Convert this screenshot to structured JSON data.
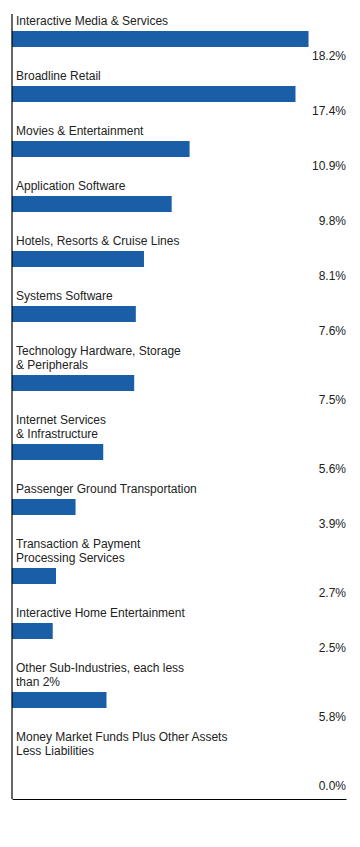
{
  "chart_data": {
    "type": "bar",
    "orientation": "horizontal",
    "categories": [
      "Interactive Media & Services",
      "Broadline Retail",
      "Movies & Entertainment",
      "Application Software",
      "Hotels, Resorts & Cruise Lines",
      "Systems Software",
      "Technology Hardware, Storage\n& Peripherals",
      "Internet Services\n& Infrastructure",
      "Passenger Ground Transportation",
      "Transaction & Payment\nProcessing Services",
      "Interactive Home Entertainment",
      "Other Sub-Industries, each less\nthan 2%",
      "Money Market Funds Plus Other Assets\nLess Liabilities"
    ],
    "values": [
      18.2,
      17.4,
      10.9,
      9.8,
      8.1,
      7.6,
      7.5,
      5.6,
      3.9,
      2.7,
      2.5,
      5.8,
      0.0
    ],
    "value_labels": [
      "18.2%",
      "17.4%",
      "10.9%",
      "9.8%",
      "8.1%",
      "7.6%",
      "7.5%",
      "5.6%",
      "3.9%",
      "2.7%",
      "2.5%",
      "5.8%",
      "0.0%"
    ],
    "color": "#1B5EA8",
    "xlim": [
      0,
      20.5
    ],
    "grid": false,
    "tick_labels": false,
    "data_labels": true
  }
}
